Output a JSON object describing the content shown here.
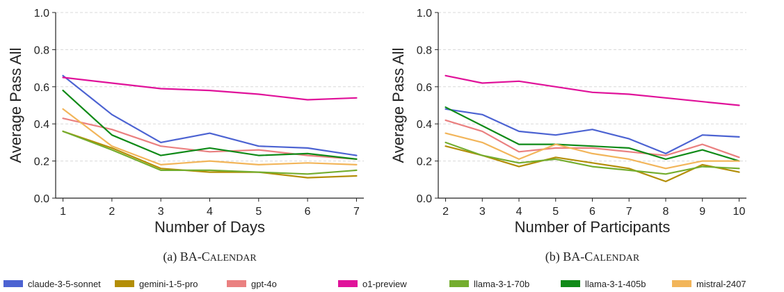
{
  "chart_data": [
    {
      "type": "line",
      "caption_prefix": "(a) BA-C",
      "caption_smallcaps": "ALENDAR",
      "xlabel": "Number of Days",
      "ylabel": "Average Pass All",
      "x": [
        1,
        2,
        3,
        4,
        5,
        6,
        7
      ],
      "xlim": [
        0.85,
        7.15
      ],
      "ylim": [
        0.0,
        1.0
      ],
      "yticks": [
        0.0,
        0.2,
        0.4,
        0.6,
        0.8,
        1.0
      ],
      "ytick_labels": [
        "0.0",
        "0.2",
        "0.4",
        "0.6",
        "0.8",
        "1.0"
      ],
      "xticks": [
        1,
        2,
        3,
        4,
        5,
        6,
        7
      ],
      "xtick_labels": [
        "1",
        "2",
        "3",
        "4",
        "5",
        "6",
        "7"
      ],
      "grid": "horizontal-dashed",
      "series": [
        {
          "name": "claude-3-5-sonnet",
          "values": [
            0.66,
            0.45,
            0.3,
            0.35,
            0.28,
            0.27,
            0.23
          ]
        },
        {
          "name": "gemini-1-5-pro",
          "values": [
            0.36,
            0.27,
            0.16,
            0.14,
            0.14,
            0.11,
            0.12
          ]
        },
        {
          "name": "gpt-4o",
          "values": [
            0.43,
            0.37,
            0.28,
            0.25,
            0.26,
            0.23,
            0.21
          ]
        },
        {
          "name": "o1-preview",
          "values": [
            0.65,
            0.62,
            0.59,
            0.58,
            0.56,
            0.53,
            0.54
          ]
        },
        {
          "name": "llama-3-1-70b",
          "values": [
            0.36,
            0.26,
            0.15,
            0.15,
            0.14,
            0.13,
            0.15
          ]
        },
        {
          "name": "llama-3-1-405b",
          "values": [
            0.58,
            0.34,
            0.23,
            0.27,
            0.23,
            0.24,
            0.21
          ]
        },
        {
          "name": "mistral-2407",
          "values": [
            0.48,
            0.28,
            0.18,
            0.2,
            0.18,
            0.19,
            0.18
          ]
        }
      ]
    },
    {
      "type": "line",
      "caption_prefix": "(b) BA-C",
      "caption_smallcaps": "ALENDAR",
      "xlabel": "Number of Participants",
      "ylabel": "Average Pass All",
      "x": [
        2,
        3,
        4,
        5,
        6,
        7,
        8,
        9,
        10
      ],
      "xlim": [
        1.8,
        10.2
      ],
      "ylim": [
        0.0,
        1.0
      ],
      "yticks": [
        0.0,
        0.2,
        0.4,
        0.6,
        0.8,
        1.0
      ],
      "ytick_labels": [
        "0.0",
        "0.2",
        "0.4",
        "0.6",
        "0.8",
        "1.0"
      ],
      "xticks": [
        2,
        3,
        4,
        5,
        6,
        7,
        8,
        9,
        10
      ],
      "xtick_labels": [
        "2",
        "3",
        "4",
        "5",
        "6",
        "7",
        "8",
        "9",
        "10"
      ],
      "grid": "horizontal-dashed",
      "series": [
        {
          "name": "claude-3-5-sonnet",
          "values": [
            0.48,
            0.45,
            0.36,
            0.34,
            0.37,
            0.32,
            0.24,
            0.34,
            0.33
          ]
        },
        {
          "name": "gemini-1-5-pro",
          "values": [
            0.28,
            0.23,
            0.17,
            0.22,
            0.19,
            0.16,
            0.09,
            0.18,
            0.14
          ]
        },
        {
          "name": "gpt-4o",
          "values": [
            0.42,
            0.36,
            0.25,
            0.27,
            0.27,
            0.25,
            0.23,
            0.29,
            0.22
          ]
        },
        {
          "name": "o1-preview",
          "values": [
            0.66,
            0.62,
            0.63,
            0.6,
            0.57,
            0.56,
            0.54,
            0.52,
            0.5
          ]
        },
        {
          "name": "llama-3-1-70b",
          "values": [
            0.3,
            0.23,
            0.19,
            0.21,
            0.17,
            0.15,
            0.13,
            0.17,
            0.16
          ]
        },
        {
          "name": "llama-3-1-405b",
          "values": [
            0.49,
            0.39,
            0.29,
            0.29,
            0.28,
            0.27,
            0.21,
            0.26,
            0.2
          ]
        },
        {
          "name": "mistral-2407",
          "values": [
            0.35,
            0.3,
            0.21,
            0.29,
            0.24,
            0.21,
            0.16,
            0.2,
            0.2
          ]
        }
      ]
    }
  ],
  "legend": {
    "placement": "bottom",
    "entries": [
      {
        "name": "claude-3-5-sonnet",
        "color": "#4c63d2"
      },
      {
        "name": "gemini-1-5-pro",
        "color": "#b38e07"
      },
      {
        "name": "gpt-4o",
        "color": "#ea8080"
      },
      {
        "name": "o1-preview",
        "color": "#e0129a"
      },
      {
        "name": "llama-3-1-70b",
        "color": "#74ad2e"
      },
      {
        "name": "llama-3-1-405b",
        "color": "#0f8a17"
      },
      {
        "name": "mistral-2407",
        "color": "#f2b55a"
      }
    ]
  }
}
